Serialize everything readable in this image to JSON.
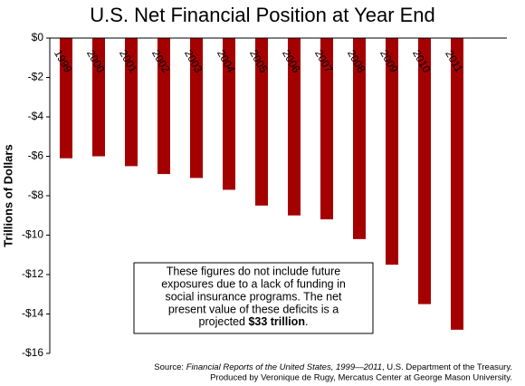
{
  "chart_data": {
    "type": "bar",
    "title": "U.S. Net Financial Position at Year End",
    "y_label": "Trillions of Dollars",
    "categories": [
      "1999",
      "2000",
      "2001",
      "2002",
      "2003",
      "2004",
      "2005",
      "2006",
      "2007",
      "2008",
      "2009",
      "2010",
      "2011"
    ],
    "values": [
      -6.1,
      -6.0,
      -6.5,
      -6.9,
      -7.1,
      -7.7,
      -8.5,
      -9.0,
      -9.2,
      -10.2,
      -11.5,
      -13.5,
      -14.8
    ],
    "color": "#a50000",
    "ylim": [
      -16,
      0
    ],
    "yticks": [
      {
        "value": 0,
        "label": "$0"
      },
      {
        "value": -2,
        "label": "-$2"
      },
      {
        "value": -4,
        "label": "-$4"
      },
      {
        "value": -6,
        "label": "-$6"
      },
      {
        "value": -8,
        "label": "-$8"
      },
      {
        "value": -10,
        "label": "-$10"
      },
      {
        "value": -12,
        "label": "-$12"
      },
      {
        "value": -14,
        "label": "-$14"
      },
      {
        "value": -16,
        "label": "-$16"
      }
    ],
    "grid": false,
    "annotation": {
      "lines": [
        "These figures do not include future",
        "exposures due to a lack of funding in",
        "social insurance programs. The net",
        "present value of these deficits is a"
      ],
      "last_prefix": "projected ",
      "last_bold": "$33 trillion",
      "last_suffix": "."
    },
    "source": {
      "prefix": "Source: ",
      "italic": "Financial Reports of the United States, 1999—2011",
      "suffix": ", U.S. Department of the Treasury.",
      "line2": "Produced by Veronique de Rugy, Mercatus Center at George Mason University."
    }
  }
}
